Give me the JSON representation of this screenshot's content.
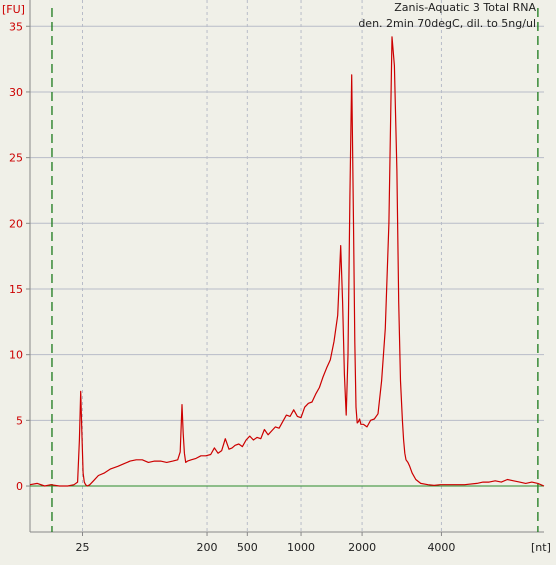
{
  "chart_data": {
    "type": "line",
    "title": "Zanis-Aquatic 3 Total RNA",
    "subtitle": "den. 2min 70degC, dil. to 5ng/ul",
    "ylabel": "[FU]",
    "xlabel": "[nt]",
    "ylim": [
      -3.5,
      37
    ],
    "yticks": [
      0,
      5,
      10,
      15,
      20,
      25,
      30,
      35
    ],
    "xticks": [
      "25",
      "200",
      "500",
      "1000",
      "2000",
      "4000"
    ],
    "x_tick_time": [
      24.7,
      34.9,
      38.2,
      42.6,
      47.6,
      54.1
    ],
    "xlim_time": [
      20.4,
      62.5
    ],
    "marker_lines_time": [
      22.2,
      62.0
    ],
    "grid": true,
    "colors": {
      "trace": "#cc0000",
      "baseline": "#2a8a2a",
      "marker": "#1a7a1a",
      "grid": "#b8bcc8",
      "ytext": "#cc0000"
    },
    "series": [
      {
        "x": [
          20.4,
          21.0,
          21.6,
          22.1,
          22.8,
          23.5,
          24.0,
          24.3,
          24.45,
          24.55,
          24.65,
          24.75,
          24.85,
          24.95,
          25.1,
          25.3,
          25.6,
          26.0,
          26.5,
          27.0,
          27.6,
          28.1,
          28.6,
          29.1,
          29.6,
          30.1,
          30.6,
          31.1,
          31.6,
          32.1,
          32.5,
          32.7,
          32.85,
          32.95,
          33.05,
          33.15,
          33.3,
          33.6,
          34.0,
          34.4,
          34.8,
          35.2,
          35.5,
          35.8,
          36.1,
          36.4,
          36.7,
          36.95,
          37.2,
          37.5,
          37.8,
          38.1,
          38.4,
          38.7,
          39.0,
          39.3,
          39.6,
          39.9,
          40.2,
          40.5,
          40.8,
          41.1,
          41.4,
          41.7,
          42.0,
          42.3,
          42.6,
          42.9,
          43.2,
          43.5,
          43.8,
          44.1,
          44.4,
          44.7,
          45.0,
          45.3,
          45.6,
          45.85,
          46.0,
          46.15,
          46.3,
          46.45,
          46.6,
          46.75,
          46.9,
          47.0,
          47.1,
          47.2,
          47.3,
          47.4,
          47.5,
          47.7,
          48.0,
          48.3,
          48.6,
          48.9,
          49.2,
          49.5,
          49.8,
          50.05,
          50.25,
          50.45,
          50.6,
          50.75,
          50.9,
          51.0,
          51.1,
          51.2,
          51.35,
          51.5,
          51.7,
          52.0,
          52.4,
          53.0,
          53.5,
          54.0,
          55.0,
          56.0,
          57.0,
          57.5,
          58.0,
          58.5,
          59.0,
          59.5,
          60.0,
          60.5,
          61.0,
          61.5,
          62.0,
          62.5
        ],
        "y": [
          0.1,
          0.2,
          0.0,
          0.1,
          0.0,
          0.0,
          0.1,
          0.3,
          3.5,
          7.2,
          4.0,
          1.0,
          0.3,
          0.1,
          0.0,
          0.1,
          0.4,
          0.8,
          1.0,
          1.3,
          1.5,
          1.7,
          1.9,
          2.0,
          2.0,
          1.8,
          1.9,
          1.9,
          1.8,
          1.9,
          2.0,
          2.6,
          6.2,
          4.0,
          2.5,
          1.8,
          1.9,
          2.0,
          2.1,
          2.3,
          2.3,
          2.4,
          2.9,
          2.5,
          2.7,
          3.6,
          2.8,
          2.9,
          3.1,
          3.2,
          3.0,
          3.5,
          3.8,
          3.5,
          3.7,
          3.6,
          4.3,
          3.9,
          4.2,
          4.5,
          4.4,
          4.9,
          5.4,
          5.3,
          5.8,
          5.3,
          5.2,
          6.0,
          6.3,
          6.4,
          7.0,
          7.5,
          8.3,
          9.0,
          9.6,
          11.0,
          13.0,
          18.3,
          14.0,
          8.5,
          5.4,
          10.0,
          22.0,
          31.3,
          20.0,
          11.0,
          6.0,
          4.8,
          4.9,
          5.1,
          4.7,
          4.7,
          4.5,
          5.0,
          5.1,
          5.5,
          8.0,
          12.0,
          20.0,
          34.2,
          32.0,
          24.0,
          14.0,
          8.0,
          5.0,
          3.5,
          2.5,
          2.0,
          1.8,
          1.5,
          1.0,
          0.5,
          0.2,
          0.1,
          0.05,
          0.1,
          0.1,
          0.1,
          0.2,
          0.3,
          0.3,
          0.4,
          0.3,
          0.5,
          0.4,
          0.3,
          0.2,
          0.3,
          0.2,
          0.0
        ]
      },
      {
        "x": [
          20.4,
          62.5
        ],
        "y": [
          0,
          0
        ]
      }
    ]
  }
}
